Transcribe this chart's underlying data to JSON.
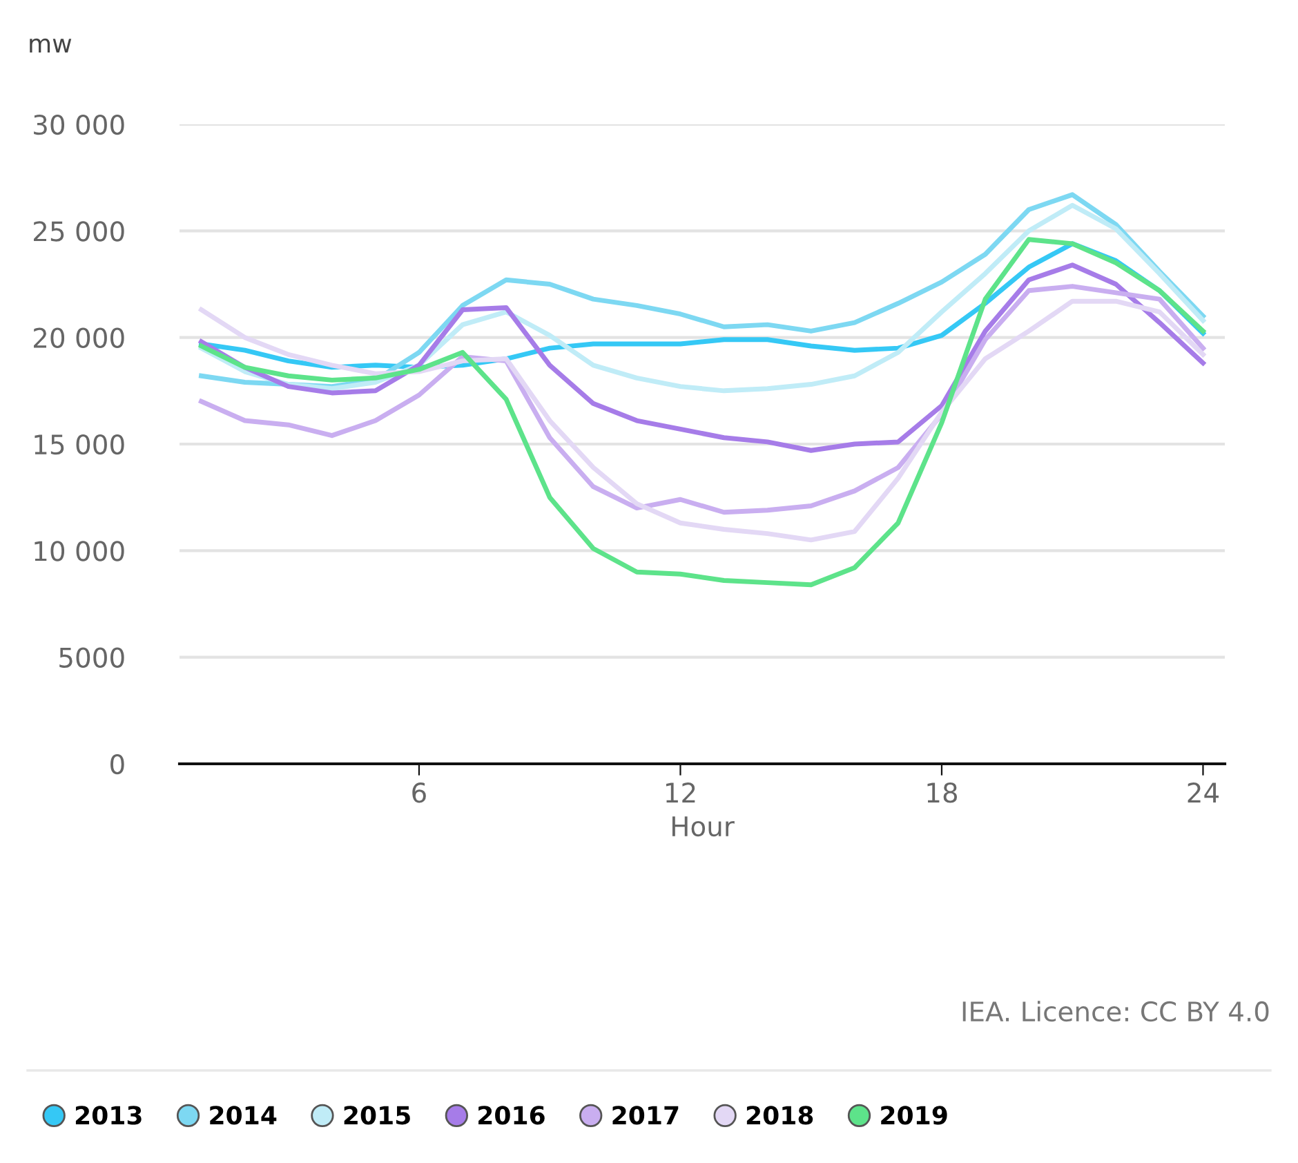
{
  "chart_data": {
    "type": "line",
    "ylabel": "mw",
    "xlabel": "Hour",
    "x": [
      1,
      2,
      3,
      4,
      5,
      6,
      7,
      8,
      9,
      10,
      11,
      12,
      13,
      14,
      15,
      16,
      17,
      18,
      19,
      20,
      21,
      22,
      23,
      24
    ],
    "xlim": [
      0.5,
      24.5
    ],
    "xticks": [
      6,
      12,
      18,
      24
    ],
    "ylim": [
      0,
      30000
    ],
    "yticks": [
      {
        "value": 0,
        "label": "0"
      },
      {
        "value": 5000,
        "label": "5000"
      },
      {
        "value": 10000,
        "label": "10 000"
      },
      {
        "value": 15000,
        "label": "15 000"
      },
      {
        "value": 20000,
        "label": "20 000"
      },
      {
        "value": 25000,
        "label": "25 000"
      },
      {
        "value": 30000,
        "label": "30 000"
      }
    ],
    "grid": "y",
    "legend": "bottom",
    "annotations": [
      "IEA. Licence: CC BY 4.0"
    ],
    "series": [
      {
        "name": "2013",
        "color": "#35c8f5",
        "values": [
          19700,
          19400,
          18900,
          18600,
          18700,
          18600,
          18700,
          19000,
          19500,
          19700,
          19700,
          19700,
          19900,
          19900,
          19600,
          19400,
          19500,
          20100,
          21600,
          23300,
          24400,
          23600,
          22200,
          20200
        ]
      },
      {
        "name": "2014",
        "color": "#7dd8f2",
        "values": [
          18200,
          17900,
          17800,
          17700,
          18000,
          19300,
          21500,
          22700,
          22500,
          21800,
          21500,
          21100,
          20500,
          20600,
          20300,
          20700,
          21600,
          22600,
          23900,
          26000,
          26700,
          25300,
          23100,
          21000
        ]
      },
      {
        "name": "2015",
        "color": "#c0ecf7",
        "values": [
          19500,
          18400,
          17800,
          17600,
          17900,
          18700,
          20600,
          21200,
          20100,
          18700,
          18100,
          17700,
          17500,
          17600,
          17800,
          18200,
          19300,
          21200,
          23000,
          25000,
          26200,
          25100,
          23000,
          20800
        ]
      },
      {
        "name": "2016",
        "color": "#a67ce8",
        "values": [
          19800,
          18600,
          17700,
          17400,
          17500,
          18700,
          21300,
          21400,
          18700,
          16900,
          16100,
          15700,
          15300,
          15100,
          14700,
          15000,
          15100,
          16800,
          20300,
          22700,
          23400,
          22500,
          20700,
          18800
        ]
      },
      {
        "name": "2017",
        "color": "#c9aef0",
        "values": [
          17000,
          16100,
          15900,
          15400,
          16100,
          17300,
          19100,
          18900,
          15300,
          13000,
          12000,
          12400,
          11800,
          11900,
          12100,
          12800,
          13900,
          16400,
          19900,
          22200,
          22400,
          22100,
          21800,
          19500
        ]
      },
      {
        "name": "2018",
        "color": "#e3d8f5",
        "values": [
          21300,
          20000,
          19200,
          18700,
          18300,
          18400,
          18900,
          19000,
          16100,
          13900,
          12200,
          11300,
          11000,
          10800,
          10500,
          10900,
          13400,
          16500,
          19000,
          20300,
          21700,
          21700,
          21200,
          19200
        ]
      },
      {
        "name": "2019",
        "color": "#5de38a",
        "values": [
          19600,
          18600,
          18200,
          18000,
          18100,
          18500,
          19300,
          17100,
          12500,
          10100,
          9000,
          8900,
          8600,
          8500,
          8400,
          9200,
          11300,
          16000,
          21800,
          24600,
          24400,
          23500,
          22200,
          20300
        ]
      }
    ]
  }
}
